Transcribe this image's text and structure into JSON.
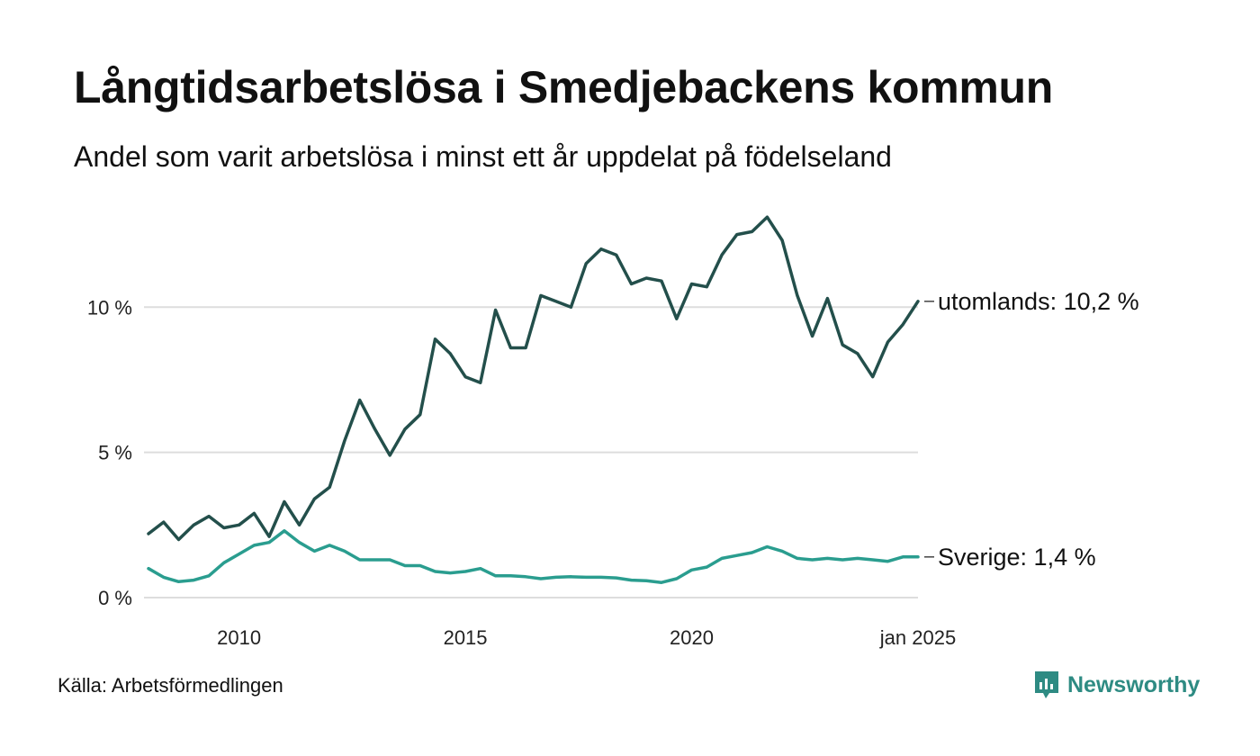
{
  "title": "Långtidsarbetslösa i Smedjebackens kommun",
  "subtitle": "Andel som varit arbetslösa i minst ett år uppdelat på födelseland",
  "source": "Källa: Arbetsförmedlingen",
  "brand": "Newsworthy",
  "colors": {
    "utomlands": "#234f4b",
    "sverige": "#2a9d8f",
    "grid": "#dddddd",
    "brand": "#2e8b83"
  },
  "chart_data": {
    "type": "line",
    "x_unit": "month",
    "x_start": "2008-01",
    "x_end": "2025-01",
    "x_ticks": [
      {
        "date": "2010-01",
        "label": "2010"
      },
      {
        "date": "2015-01",
        "label": "2015"
      },
      {
        "date": "2020-01",
        "label": "2020"
      },
      {
        "date": "2025-01",
        "label": "jan 2025"
      }
    ],
    "y_ticks": [
      {
        "value": 0,
        "label": "0 %"
      },
      {
        "value": 5,
        "label": "5 %"
      },
      {
        "value": 10,
        "label": "10 %"
      }
    ],
    "ylim": [
      0,
      13.2
    ],
    "grid": true,
    "series": [
      {
        "key": "utomlands",
        "end_label": "utomlands: 10,2 %",
        "points": [
          [
            "2008-01",
            2.2
          ],
          [
            "2008-05",
            2.6
          ],
          [
            "2008-09",
            2.0
          ],
          [
            "2009-01",
            2.5
          ],
          [
            "2009-05",
            2.8
          ],
          [
            "2009-09",
            2.4
          ],
          [
            "2010-01",
            2.5
          ],
          [
            "2010-05",
            2.9
          ],
          [
            "2010-09",
            2.1
          ],
          [
            "2011-01",
            3.3
          ],
          [
            "2011-05",
            2.5
          ],
          [
            "2011-09",
            3.4
          ],
          [
            "2012-01",
            3.8
          ],
          [
            "2012-05",
            5.4
          ],
          [
            "2012-09",
            6.8
          ],
          [
            "2013-01",
            5.8
          ],
          [
            "2013-05",
            4.9
          ],
          [
            "2013-09",
            5.8
          ],
          [
            "2014-01",
            6.3
          ],
          [
            "2014-05",
            8.9
          ],
          [
            "2014-09",
            8.4
          ],
          [
            "2015-01",
            7.6
          ],
          [
            "2015-05",
            7.4
          ],
          [
            "2015-09",
            9.9
          ],
          [
            "2016-01",
            8.6
          ],
          [
            "2016-05",
            8.6
          ],
          [
            "2016-09",
            10.4
          ],
          [
            "2017-01",
            10.2
          ],
          [
            "2017-05",
            10.0
          ],
          [
            "2017-09",
            11.5
          ],
          [
            "2018-01",
            12.0
          ],
          [
            "2018-05",
            11.8
          ],
          [
            "2018-09",
            10.8
          ],
          [
            "2019-01",
            11.0
          ],
          [
            "2019-05",
            10.9
          ],
          [
            "2019-09",
            9.6
          ],
          [
            "2020-01",
            10.8
          ],
          [
            "2020-05",
            10.7
          ],
          [
            "2020-09",
            11.8
          ],
          [
            "2021-01",
            12.5
          ],
          [
            "2021-05",
            12.6
          ],
          [
            "2021-09",
            13.1
          ],
          [
            "2022-01",
            12.3
          ],
          [
            "2022-05",
            10.4
          ],
          [
            "2022-09",
            9.0
          ],
          [
            "2023-01",
            10.3
          ],
          [
            "2023-05",
            8.7
          ],
          [
            "2023-09",
            8.4
          ],
          [
            "2024-01",
            7.6
          ],
          [
            "2024-05",
            8.8
          ],
          [
            "2024-09",
            9.4
          ],
          [
            "2025-01",
            10.2
          ]
        ]
      },
      {
        "key": "sverige",
        "end_label": "Sverige:  1,4 %",
        "points": [
          [
            "2008-01",
            1.0
          ],
          [
            "2008-05",
            0.7
          ],
          [
            "2008-09",
            0.55
          ],
          [
            "2009-01",
            0.6
          ],
          [
            "2009-05",
            0.75
          ],
          [
            "2009-09",
            1.2
          ],
          [
            "2010-01",
            1.5
          ],
          [
            "2010-05",
            1.8
          ],
          [
            "2010-09",
            1.9
          ],
          [
            "2011-01",
            2.3
          ],
          [
            "2011-05",
            1.9
          ],
          [
            "2011-09",
            1.6
          ],
          [
            "2012-01",
            1.8
          ],
          [
            "2012-05",
            1.6
          ],
          [
            "2012-09",
            1.3
          ],
          [
            "2013-01",
            1.3
          ],
          [
            "2013-05",
            1.3
          ],
          [
            "2013-09",
            1.1
          ],
          [
            "2014-01",
            1.1
          ],
          [
            "2014-05",
            0.9
          ],
          [
            "2014-09",
            0.85
          ],
          [
            "2015-01",
            0.9
          ],
          [
            "2015-05",
            1.0
          ],
          [
            "2015-09",
            0.75
          ],
          [
            "2016-01",
            0.75
          ],
          [
            "2016-05",
            0.72
          ],
          [
            "2016-09",
            0.65
          ],
          [
            "2017-01",
            0.7
          ],
          [
            "2017-05",
            0.72
          ],
          [
            "2017-09",
            0.7
          ],
          [
            "2018-01",
            0.7
          ],
          [
            "2018-05",
            0.68
          ],
          [
            "2018-09",
            0.6
          ],
          [
            "2019-01",
            0.58
          ],
          [
            "2019-05",
            0.52
          ],
          [
            "2019-09",
            0.65
          ],
          [
            "2020-01",
            0.95
          ],
          [
            "2020-05",
            1.05
          ],
          [
            "2020-09",
            1.35
          ],
          [
            "2021-01",
            1.45
          ],
          [
            "2021-05",
            1.55
          ],
          [
            "2021-09",
            1.75
          ],
          [
            "2022-01",
            1.6
          ],
          [
            "2022-05",
            1.35
          ],
          [
            "2022-09",
            1.3
          ],
          [
            "2023-01",
            1.35
          ],
          [
            "2023-05",
            1.3
          ],
          [
            "2023-09",
            1.35
          ],
          [
            "2024-01",
            1.3
          ],
          [
            "2024-05",
            1.25
          ],
          [
            "2024-09",
            1.4
          ],
          [
            "2025-01",
            1.4
          ]
        ]
      }
    ]
  }
}
